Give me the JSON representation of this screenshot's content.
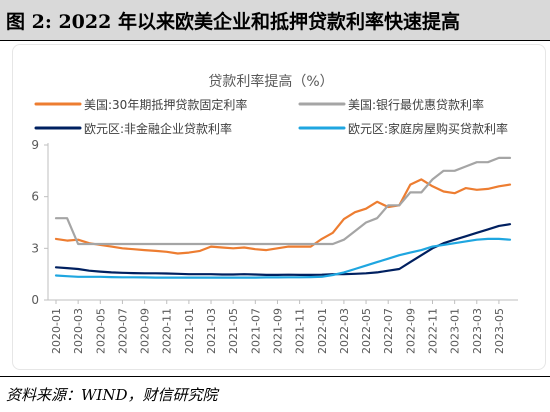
{
  "figure": {
    "title": "图 2:  2022 年以来欧美企业和抵押贷款利率快速提高",
    "source": "资料来源：WIND，财信研究院"
  },
  "chart_data": {
    "type": "line",
    "title": "贷款利率提高（%）",
    "xlabel": "",
    "ylabel": "",
    "ylim": [
      0,
      9
    ],
    "yticks": [
      0,
      3,
      6,
      9
    ],
    "grid": false,
    "legend_position": "top",
    "x": [
      "2020-01",
      "2020-02",
      "2020-03",
      "2020-04",
      "2020-05",
      "2020-06",
      "2020-07",
      "2020-08",
      "2020-09",
      "2020-10",
      "2020-11",
      "2020-12",
      "2021-01",
      "2021-02",
      "2021-03",
      "2021-04",
      "2021-05",
      "2021-06",
      "2021-07",
      "2021-08",
      "2021-09",
      "2021-10",
      "2021-11",
      "2021-12",
      "2022-01",
      "2022-02",
      "2022-03",
      "2022-04",
      "2022-05",
      "2022-06",
      "2022-07",
      "2022-08",
      "2022-09",
      "2022-10",
      "2022-11",
      "2022-12",
      "2023-01",
      "2023-02",
      "2023-03",
      "2023-04",
      "2023-05",
      "2023-06"
    ],
    "x_tick_labels": [
      "2020-01",
      "2020-03",
      "2020-05",
      "2020-07",
      "2020-09",
      "2020-11",
      "2021-01",
      "2021-03",
      "2021-05",
      "2021-07",
      "2021-09",
      "2021-11",
      "2022-01",
      "2022-03",
      "2022-05",
      "2022-07",
      "2022-09",
      "2022-11",
      "2023-01",
      "2023-03",
      "2023-05"
    ],
    "series": [
      {
        "name": "美国:30年期抵押贷款固定利率",
        "color": "#ed7d31",
        "values": [
          3.55,
          3.45,
          3.5,
          3.3,
          3.2,
          3.1,
          3.0,
          2.95,
          2.9,
          2.85,
          2.8,
          2.7,
          2.75,
          2.85,
          3.1,
          3.05,
          3.0,
          3.05,
          2.95,
          2.9,
          3.0,
          3.1,
          3.1,
          3.1,
          3.55,
          3.9,
          4.7,
          5.1,
          5.3,
          5.7,
          5.4,
          5.5,
          6.7,
          7.0,
          6.6,
          6.3,
          6.2,
          6.5,
          6.4,
          6.45,
          6.6,
          6.7
        ]
      },
      {
        "name": "美国:银行最优惠贷款利率",
        "color": "#a5a5a5",
        "values": [
          4.75,
          4.75,
          3.25,
          3.25,
          3.25,
          3.25,
          3.25,
          3.25,
          3.25,
          3.25,
          3.25,
          3.25,
          3.25,
          3.25,
          3.25,
          3.25,
          3.25,
          3.25,
          3.25,
          3.25,
          3.25,
          3.25,
          3.25,
          3.25,
          3.25,
          3.25,
          3.5,
          4.0,
          4.5,
          4.75,
          5.5,
          5.5,
          6.25,
          6.25,
          7.0,
          7.5,
          7.5,
          7.75,
          8.0,
          8.0,
          8.25,
          8.25
        ]
      },
      {
        "name": "欧元区:非金融企业贷款利率",
        "color": "#002060",
        "values": [
          1.9,
          1.85,
          1.8,
          1.7,
          1.65,
          1.6,
          1.58,
          1.56,
          1.55,
          1.55,
          1.54,
          1.52,
          1.5,
          1.5,
          1.5,
          1.48,
          1.48,
          1.5,
          1.48,
          1.46,
          1.46,
          1.47,
          1.46,
          1.46,
          1.47,
          1.5,
          1.5,
          1.52,
          1.55,
          1.6,
          1.7,
          1.8,
          2.2,
          2.6,
          3.0,
          3.3,
          3.5,
          3.7,
          3.9,
          4.1,
          4.3,
          4.4
        ]
      },
      {
        "name": "欧元区:家庭房屋购买贷款利率",
        "color": "#1fa6e0",
        "values": [
          1.42,
          1.38,
          1.35,
          1.35,
          1.35,
          1.33,
          1.32,
          1.32,
          1.31,
          1.3,
          1.3,
          1.3,
          1.3,
          1.3,
          1.3,
          1.3,
          1.3,
          1.3,
          1.3,
          1.31,
          1.31,
          1.32,
          1.32,
          1.33,
          1.35,
          1.45,
          1.6,
          1.8,
          2.0,
          2.2,
          2.4,
          2.6,
          2.75,
          2.9,
          3.1,
          3.2,
          3.3,
          3.4,
          3.5,
          3.55,
          3.55,
          3.5
        ]
      }
    ]
  }
}
